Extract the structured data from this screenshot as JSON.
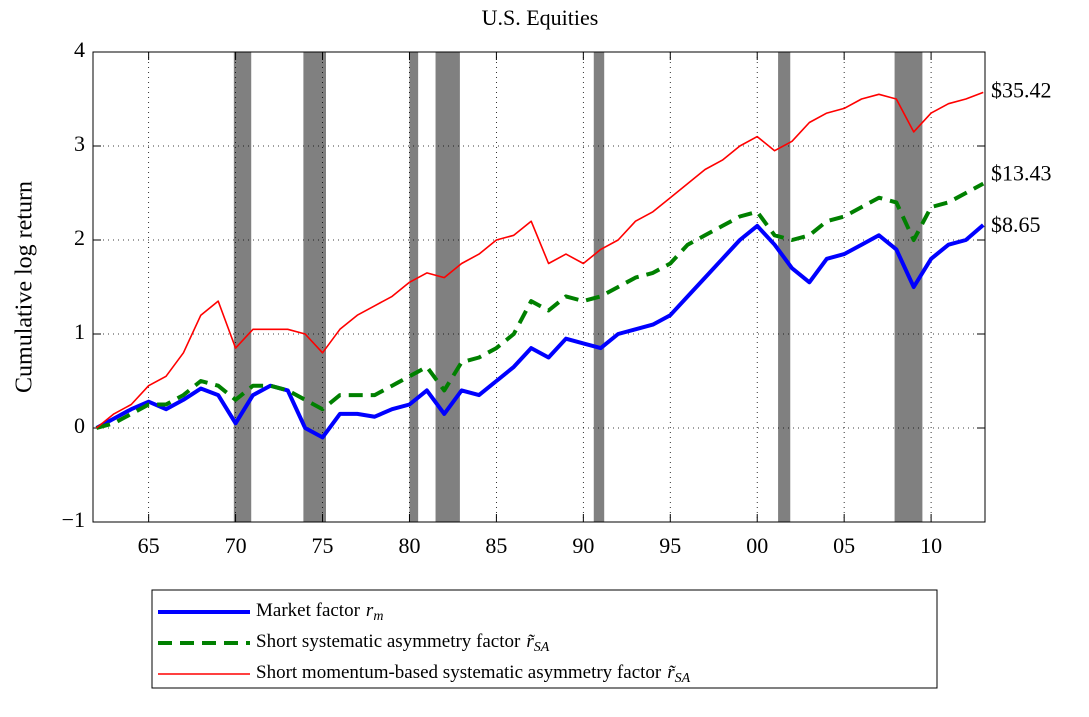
{
  "chart_data": {
    "type": "line",
    "title": "U.S. Equities",
    "y_label": "Cumulative log return",
    "xlim": [
      1961.8,
      2013.1
    ],
    "ylim": [
      -1,
      4
    ],
    "xticks": [
      {
        "value": 1965,
        "label": "65"
      },
      {
        "value": 1970,
        "label": "70"
      },
      {
        "value": 1975,
        "label": "75"
      },
      {
        "value": 1980,
        "label": "80"
      },
      {
        "value": 1985,
        "label": "85"
      },
      {
        "value": 1990,
        "label": "90"
      },
      {
        "value": 1995,
        "label": "95"
      },
      {
        "value": 2000,
        "label": "00"
      },
      {
        "value": 2005,
        "label": "05"
      },
      {
        "value": 2010,
        "label": "10"
      }
    ],
    "yticks": [
      {
        "value": -1,
        "label": "−1"
      },
      0,
      1,
      2,
      3,
      4
    ],
    "grid": true,
    "shading_color": "#808080",
    "recessions": [
      [
        1969.9,
        1970.9
      ],
      [
        1973.9,
        1975.2
      ],
      [
        1980.0,
        1980.5
      ],
      [
        1981.5,
        1982.9
      ],
      [
        1990.6,
        1991.2
      ],
      [
        2001.2,
        2001.9
      ],
      [
        2007.9,
        2009.5
      ]
    ],
    "x": [
      1962,
      1963,
      1964,
      1965,
      1966,
      1967,
      1968,
      1969,
      1970,
      1971,
      1972,
      1973,
      1974,
      1975,
      1976,
      1977,
      1978,
      1979,
      1980,
      1981,
      1982,
      1983,
      1984,
      1985,
      1986,
      1987,
      1988,
      1989,
      1990,
      1991,
      1992,
      1993,
      1994,
      1995,
      1996,
      1997,
      1998,
      1999,
      2000,
      2001,
      2002,
      2003,
      2004,
      2005,
      2006,
      2007,
      2008,
      2009,
      2010,
      2011,
      2012,
      2013
    ],
    "series": [
      {
        "name": "Market factor",
        "symbol": "r",
        "subscript": "m",
        "color": "#0000ff",
        "line_width": 4,
        "dashed": false,
        "end_label": "$8.65",
        "values": [
          0,
          0.1,
          0.2,
          0.28,
          0.2,
          0.3,
          0.42,
          0.35,
          0.05,
          0.35,
          0.45,
          0.4,
          0.0,
          -0.1,
          0.15,
          0.15,
          0.12,
          0.2,
          0.25,
          0.4,
          0.15,
          0.4,
          0.35,
          0.5,
          0.65,
          0.85,
          0.75,
          0.95,
          0.9,
          0.85,
          1.0,
          1.05,
          1.1,
          1.2,
          1.4,
          1.6,
          1.8,
          2.0,
          2.15,
          1.95,
          1.7,
          1.55,
          1.8,
          1.85,
          1.95,
          2.05,
          1.9,
          1.5,
          1.8,
          1.95,
          2.0,
          2.16
        ]
      },
      {
        "name": "Short systematic asymmetry factor",
        "symbol": "r̃",
        "subscript": "SA",
        "color": "#008000",
        "line_width": 4,
        "dashed": true,
        "end_label": "$13.43",
        "values": [
          0,
          0.05,
          0.15,
          0.25,
          0.25,
          0.35,
          0.5,
          0.45,
          0.3,
          0.45,
          0.45,
          0.4,
          0.3,
          0.2,
          0.35,
          0.35,
          0.35,
          0.45,
          0.55,
          0.65,
          0.4,
          0.7,
          0.75,
          0.85,
          1.0,
          1.35,
          1.25,
          1.4,
          1.35,
          1.4,
          1.5,
          1.6,
          1.65,
          1.75,
          1.95,
          2.05,
          2.15,
          2.25,
          2.3,
          2.05,
          2.0,
          2.05,
          2.2,
          2.25,
          2.35,
          2.45,
          2.4,
          2.0,
          2.35,
          2.4,
          2.5,
          2.6
        ]
      },
      {
        "name": "Short momentum-based systematic asymmetry factor",
        "symbol": "r̃",
        "subscript": "SA",
        "color": "#ff0000",
        "line_width": 1.6,
        "dashed": false,
        "end_label": "$35.42",
        "values": [
          0,
          0.15,
          0.25,
          0.45,
          0.55,
          0.8,
          1.2,
          1.35,
          0.85,
          1.05,
          1.05,
          1.05,
          1.0,
          0.8,
          1.05,
          1.2,
          1.3,
          1.4,
          1.55,
          1.65,
          1.6,
          1.75,
          1.85,
          2.0,
          2.05,
          2.2,
          1.75,
          1.85,
          1.75,
          1.9,
          2.0,
          2.2,
          2.3,
          2.45,
          2.6,
          2.75,
          2.85,
          3.0,
          3.1,
          2.95,
          3.05,
          3.25,
          3.35,
          3.4,
          3.5,
          3.55,
          3.5,
          3.15,
          3.35,
          3.45,
          3.5,
          3.57
        ]
      }
    ]
  }
}
